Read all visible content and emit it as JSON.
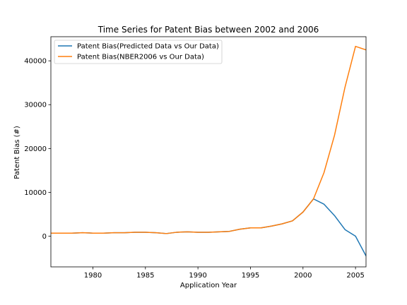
{
  "chart_data": {
    "type": "line",
    "title": "Time Series for Patent Bias between 2002 and 2006",
    "xlabel": "Application Year",
    "ylabel": "Patent Bias (#)",
    "xlim": [
      1976,
      2006
    ],
    "ylim": [
      -7000,
      45500
    ],
    "xticks": [
      1980,
      1985,
      1990,
      1995,
      2000,
      2005
    ],
    "yticks": [
      0,
      10000,
      20000,
      30000,
      40000
    ],
    "grid": false,
    "legend_position": "top-left",
    "x": [
      1976,
      1977,
      1978,
      1979,
      1980,
      1981,
      1982,
      1983,
      1984,
      1985,
      1986,
      1987,
      1988,
      1989,
      1990,
      1991,
      1992,
      1993,
      1994,
      1995,
      1996,
      1997,
      1998,
      1999,
      2000,
      2001,
      2002,
      2003,
      2004,
      2005,
      2006
    ],
    "series": [
      {
        "name": "Patent Bias(Predicted Data vs Our Data)",
        "color": "#1f77b4",
        "values": [
          700,
          700,
          700,
          800,
          700,
          700,
          800,
          800,
          900,
          900,
          800,
          600,
          900,
          1000,
          900,
          900,
          1000,
          1100,
          1600,
          1900,
          1900,
          2300,
          2800,
          3500,
          5500,
          8500,
          7300,
          4700,
          1500,
          0,
          -4500
        ]
      },
      {
        "name": "Patent Bias(NBER2006 vs Our Data)",
        "color": "#ff7f0e",
        "values": [
          700,
          700,
          700,
          800,
          700,
          700,
          800,
          800,
          900,
          900,
          800,
          600,
          900,
          1000,
          900,
          900,
          1000,
          1100,
          1600,
          1900,
          1900,
          2300,
          2800,
          3500,
          5500,
          8500,
          14500,
          23000,
          34000,
          43300,
          42500
        ]
      }
    ]
  }
}
